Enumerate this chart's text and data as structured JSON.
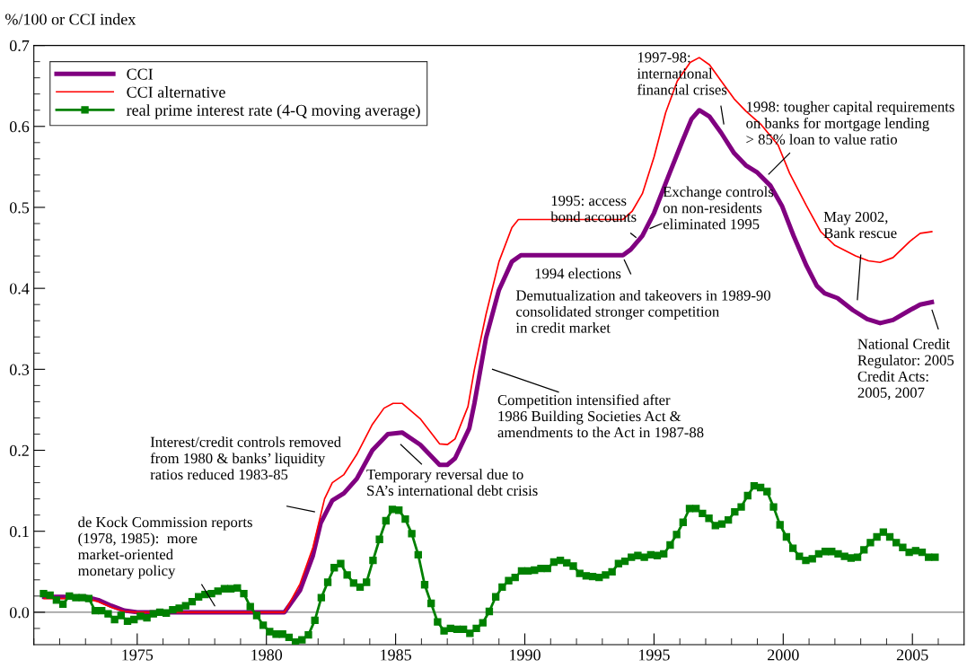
{
  "chart_data": {
    "type": "line",
    "ylabel": "%/100 or CCI index",
    "xlim": [
      1971,
      2007
    ],
    "xticks": [
      {
        "value": 1971,
        "label": null
      },
      {
        "value": 1972,
        "label": null
      },
      {
        "value": 1973,
        "label": null
      },
      {
        "value": 1974,
        "label": null
      },
      1975,
      {
        "value": 1976,
        "label": null
      },
      {
        "value": 1977,
        "label": null
      },
      {
        "value": 1978,
        "label": null
      },
      {
        "value": 1979,
        "label": null
      },
      1980,
      {
        "value": 1981,
        "label": null
      },
      {
        "value": 1982,
        "label": null
      },
      {
        "value": 1983,
        "label": null
      },
      {
        "value": 1984,
        "label": null
      },
      1985,
      {
        "value": 1986,
        "label": null
      },
      {
        "value": 1987,
        "label": null
      },
      {
        "value": 1988,
        "label": null
      },
      {
        "value": 1989,
        "label": null
      },
      1990,
      {
        "value": 1991,
        "label": null
      },
      {
        "value": 1992,
        "label": null
      },
      {
        "value": 1993,
        "label": null
      },
      {
        "value": 1994,
        "label": null
      },
      1995,
      {
        "value": 1996,
        "label": null
      },
      {
        "value": 1997,
        "label": null
      },
      {
        "value": 1998,
        "label": null
      },
      {
        "value": 1999,
        "label": null
      },
      2000,
      {
        "value": 2001,
        "label": null
      },
      {
        "value": 2002,
        "label": null
      },
      {
        "value": 2003,
        "label": null
      },
      {
        "value": 2004,
        "label": null
      },
      2005,
      {
        "value": 2006,
        "label": null
      }
    ],
    "ylim": [
      -0.04,
      0.7
    ],
    "yticks": [
      {
        "value": -0.02,
        "label": null
      },
      {
        "value": 0,
        "label": "0.0"
      },
      {
        "value": 0.02,
        "label": null
      },
      {
        "value": 0.04,
        "label": null
      },
      {
        "value": 0.06,
        "label": null
      },
      {
        "value": 0.08,
        "label": null
      },
      0.1,
      {
        "value": 0.12,
        "label": null
      },
      {
        "value": 0.14,
        "label": null
      },
      {
        "value": 0.16,
        "label": null
      },
      {
        "value": 0.18,
        "label": null
      },
      0.2,
      {
        "value": 0.22,
        "label": null
      },
      {
        "value": 0.24,
        "label": null
      },
      {
        "value": 0.26,
        "label": null
      },
      {
        "value": 0.28,
        "label": null
      },
      0.3,
      {
        "value": 0.32,
        "label": null
      },
      {
        "value": 0.34,
        "label": null
      },
      {
        "value": 0.36,
        "label": null
      },
      {
        "value": 0.38,
        "label": null
      },
      0.4,
      {
        "value": 0.42,
        "label": null
      },
      {
        "value": 0.44,
        "label": null
      },
      {
        "value": 0.46,
        "label": null
      },
      {
        "value": 0.48,
        "label": null
      },
      0.5,
      {
        "value": 0.52,
        "label": null
      },
      {
        "value": 0.54,
        "label": null
      },
      {
        "value": 0.56,
        "label": null
      },
      {
        "value": 0.58,
        "label": null
      },
      0.6,
      {
        "value": 0.62,
        "label": null
      },
      {
        "value": 0.64,
        "label": null
      },
      {
        "value": 0.66,
        "label": null
      },
      {
        "value": 0.68,
        "label": null
      },
      0.7
    ],
    "grid": false,
    "legend": "top left",
    "line_style": "solid",
    "ref_lines": [
      {
        "axis": "y",
        "value": 0,
        "color": "#808080"
      }
    ],
    "series": [
      {
        "name": "CCI",
        "color": "#800080",
        "marker": "none",
        "x": [
          1971.4,
          1973.0,
          1973.5,
          1974.0,
          1974.5,
          1975.0,
          1980.7,
          1981.3,
          1981.8,
          1982.1,
          1982.55,
          1983.0,
          1983.5,
          1984.1,
          1984.7,
          1985.25,
          1985.95,
          1986.7,
          1987.0,
          1987.3,
          1987.85,
          1988.05,
          1988.5,
          1989.0,
          1989.5,
          1989.85,
          1993.8,
          1994.1,
          1994.55,
          1995.0,
          1995.6,
          1996.1,
          1996.45,
          1996.75,
          1997.15,
          1997.6,
          1998.1,
          1998.55,
          1999.0,
          1999.5,
          1999.95,
          2000.4,
          2000.9,
          2001.3,
          2001.6,
          2002.1,
          2002.7,
          2003.25,
          2003.75,
          2004.25,
          2004.9,
          2005.3,
          2005.75
        ],
        "values": [
          0.019,
          0.019,
          0.015,
          0.008,
          0.002,
          0.0,
          0.0,
          0.027,
          0.07,
          0.11,
          0.138,
          0.147,
          0.165,
          0.2,
          0.22,
          0.222,
          0.207,
          0.182,
          0.182,
          0.19,
          0.227,
          0.258,
          0.339,
          0.398,
          0.433,
          0.441,
          0.441,
          0.448,
          0.465,
          0.493,
          0.542,
          0.582,
          0.609,
          0.62,
          0.612,
          0.592,
          0.567,
          0.552,
          0.543,
          0.527,
          0.502,
          0.465,
          0.428,
          0.403,
          0.394,
          0.388,
          0.373,
          0.362,
          0.357,
          0.361,
          0.373,
          0.38,
          0.383
        ]
      },
      {
        "name": "CCI alternative",
        "color": "#ff0000",
        "marker": "none",
        "x": [
          1971.4,
          1973.0,
          1973.5,
          1974.0,
          1974.5,
          1975.0,
          1980.7,
          1981.3,
          1981.8,
          1982.25,
          1982.55,
          1983.0,
          1983.5,
          1984.1,
          1984.55,
          1984.9,
          1985.25,
          1985.95,
          1986.7,
          1987.0,
          1987.3,
          1987.8,
          1988.05,
          1988.5,
          1989.0,
          1989.5,
          1989.75,
          1993.8,
          1994.15,
          1994.55,
          1995.0,
          1995.45,
          1995.9,
          1996.4,
          1996.75,
          1997.15,
          1997.6,
          1998.1,
          1998.55,
          1999.15,
          1999.8,
          2000.25,
          2000.9,
          2001.45,
          2002.0,
          2002.8,
          2003.3,
          2003.75,
          2004.25,
          2004.9,
          2005.3,
          2005.75
        ],
        "values": [
          0.017,
          0.017,
          0.013,
          0.006,
          0.001,
          0.0,
          0.0,
          0.035,
          0.08,
          0.14,
          0.16,
          0.17,
          0.195,
          0.232,
          0.252,
          0.258,
          0.258,
          0.239,
          0.208,
          0.207,
          0.214,
          0.254,
          0.3,
          0.368,
          0.433,
          0.475,
          0.485,
          0.485,
          0.495,
          0.517,
          0.562,
          0.617,
          0.656,
          0.679,
          0.685,
          0.676,
          0.656,
          0.634,
          0.619,
          0.602,
          0.577,
          0.542,
          0.502,
          0.47,
          0.453,
          0.44,
          0.434,
          0.432,
          0.438,
          0.458,
          0.468,
          0.47
        ]
      },
      {
        "name": "real prime interest rate (4-Q moving average)",
        "color": "#008000",
        "marker": "square",
        "x": [
          1971.375,
          1971.625,
          1971.875,
          1972.125,
          1972.375,
          1972.625,
          1972.875,
          1973.125,
          1973.375,
          1973.625,
          1973.875,
          1974.125,
          1974.375,
          1974.625,
          1974.875,
          1975.125,
          1975.375,
          1975.625,
          1975.875,
          1976.125,
          1976.375,
          1976.625,
          1976.875,
          1977.125,
          1977.375,
          1977.625,
          1977.875,
          1978.125,
          1978.375,
          1978.625,
          1978.875,
          1979.125,
          1979.375,
          1979.625,
          1979.875,
          1980.125,
          1980.375,
          1980.625,
          1980.875,
          1981.125,
          1981.375,
          1981.625,
          1981.875,
          1982.125,
          1982.375,
          1982.625,
          1982.875,
          1983.125,
          1983.375,
          1983.625,
          1983.875,
          1984.125,
          1984.375,
          1984.625,
          1984.875,
          1985.125,
          1985.375,
          1985.625,
          1985.875,
          1986.125,
          1986.375,
          1986.625,
          1986.875,
          1987.125,
          1987.375,
          1987.625,
          1987.875,
          1988.125,
          1988.375,
          1988.625,
          1988.875,
          1989.125,
          1989.375,
          1989.625,
          1989.875,
          1990.125,
          1990.375,
          1990.625,
          1990.875,
          1991.125,
          1991.375,
          1991.625,
          1991.875,
          1992.125,
          1992.375,
          1992.625,
          1992.875,
          1993.125,
          1993.375,
          1993.625,
          1993.875,
          1994.125,
          1994.375,
          1994.625,
          1994.875,
          1995.125,
          1995.375,
          1995.625,
          1995.875,
          1996.125,
          1996.375,
          1996.625,
          1996.875,
          1997.125,
          1997.375,
          1997.625,
          1997.875,
          1998.125,
          1998.375,
          1998.625,
          1998.875,
          1999.125,
          1999.375,
          1999.625,
          1999.875,
          2000.125,
          2000.375,
          2000.625,
          2000.875,
          2001.125,
          2001.375,
          2001.625,
          2001.875,
          2002.125,
          2002.375,
          2002.625,
          2002.875,
          2003.125,
          2003.375,
          2003.625,
          2003.875,
          2004.125,
          2004.375,
          2004.625,
          2004.875,
          2005.125,
          2005.375,
          2005.625,
          2005.875
        ],
        "values": [
          0.023,
          0.021,
          0.015,
          0.01,
          0.02,
          0.018,
          0.018,
          0.017,
          0.002,
          0.002,
          -0.002,
          -0.009,
          -0.004,
          -0.011,
          -0.009,
          -0.005,
          -0.007,
          -0.002,
          0.0,
          -0.001,
          0.003,
          0.005,
          0.008,
          0.013,
          0.019,
          0.022,
          0.023,
          0.026,
          0.029,
          0.029,
          0.03,
          0.023,
          0.007,
          -0.004,
          -0.016,
          -0.024,
          -0.027,
          -0.027,
          -0.031,
          -0.037,
          -0.034,
          -0.028,
          -0.01,
          0.018,
          0.037,
          0.055,
          0.06,
          0.046,
          0.036,
          0.031,
          0.037,
          0.064,
          0.09,
          0.113,
          0.127,
          0.126,
          0.115,
          0.097,
          0.071,
          0.034,
          0.011,
          -0.012,
          -0.023,
          -0.02,
          -0.021,
          -0.021,
          -0.026,
          -0.02,
          -0.013,
          0.001,
          0.019,
          0.031,
          0.039,
          0.043,
          0.051,
          0.051,
          0.052,
          0.054,
          0.054,
          0.062,
          0.064,
          0.061,
          0.057,
          0.048,
          0.045,
          0.044,
          0.043,
          0.046,
          0.05,
          0.06,
          0.063,
          0.068,
          0.07,
          0.068,
          0.071,
          0.07,
          0.072,
          0.083,
          0.096,
          0.111,
          0.128,
          0.128,
          0.122,
          0.116,
          0.107,
          0.109,
          0.114,
          0.124,
          0.13,
          0.144,
          0.156,
          0.154,
          0.149,
          0.13,
          0.108,
          0.093,
          0.079,
          0.069,
          0.064,
          0.066,
          0.072,
          0.075,
          0.075,
          0.072,
          0.069,
          0.067,
          0.068,
          0.077,
          0.086,
          0.093,
          0.099,
          0.093,
          0.086,
          0.08,
          0.074,
          0.076,
          0.074,
          0.068,
          0.068
        ]
      }
    ],
    "annotations": [
      "de Kock Commission reports\n(1978, 1985):  more\nmarket-oriented\nmonetary policy",
      "Interest/credit controls removed\nfrom 1980 & banks’ liquidity\nratios reduced 1983-85",
      "Temporary reversal due to\nSA’s international debt crisis",
      "Competition intensified after\n1986 Building Societies Act &\namendments to the Act in 1987-88",
      "Demutualization and takeovers in 1989-90\nconsolidated stronger competition\nin credit market",
      "1994 elections",
      "1995: access\nbond accounts",
      "Exchange controls\non non-residents\neliminated 1995",
      "1997-98:\ninternational\nfinancial crises",
      "1998: tougher capital requirements\non banks for mortgage lending\n> 85% loan to value ratio",
      "May 2002,\nBank rescue",
      "National Credit\nRegulator: 2005\nCredit Acts:\n2005, 2007"
    ]
  }
}
